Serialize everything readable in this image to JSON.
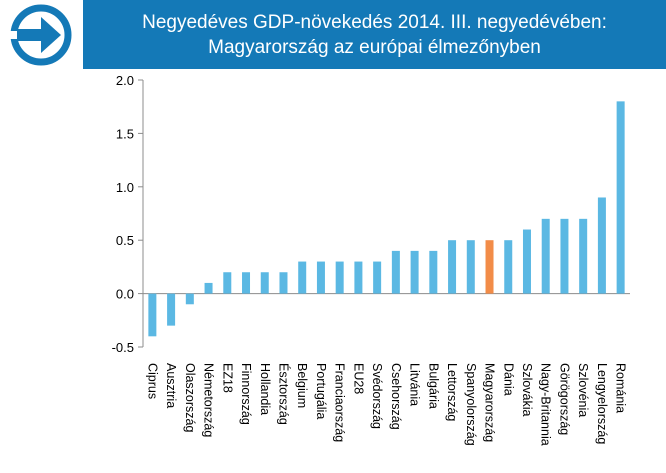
{
  "header": {
    "title_line1": "Negyedéves GDP-növekedés 2014. III. negyedévében:",
    "title_line2": "Magyarország az európai élmezőnyben",
    "background_color": "#1479b7",
    "logo_icon": "arrow-circle-logo-icon"
  },
  "chart_data": {
    "type": "bar",
    "title": "Negyedéves GDP-növekedés 2014. III. negyedévében: Magyarország az európai élmezőnyben",
    "xlabel": "",
    "ylabel": "",
    "ylim": [
      -0.5,
      2.0
    ],
    "yticks": [
      "2.0",
      "1.5",
      "1.0",
      "0.5",
      "0.0",
      "-0.5"
    ],
    "ytick_values": [
      2.0,
      1.5,
      1.0,
      0.5,
      0.0,
      -0.5
    ],
    "grid": false,
    "legend": "none",
    "categories": [
      "Ciprus",
      "Ausztria",
      "Olaszország",
      "Németország",
      "EZ18",
      "Finnország",
      "Hollandia",
      "Észtország",
      "Belgium",
      "Portugália",
      "Franciaország",
      "EU28",
      "Svédország",
      "Csehország",
      "Litvánia",
      "Bulgária",
      "Lettország",
      "Spanyolország",
      "Magyarország",
      "Dánia",
      "Szlovákia",
      "Nagy-Britannia",
      "Görögország",
      "Szlovénia",
      "Lengyelország",
      "Románia"
    ],
    "values": [
      -0.4,
      -0.3,
      -0.1,
      0.1,
      0.2,
      0.2,
      0.2,
      0.2,
      0.3,
      0.3,
      0.3,
      0.3,
      0.3,
      0.4,
      0.4,
      0.4,
      0.5,
      0.5,
      0.5,
      0.5,
      0.6,
      0.7,
      0.7,
      0.7,
      0.9,
      1.8
    ],
    "bar_color": "#5bb8e3",
    "highlight_color": "#f28c48",
    "highlight_category": "Magyarország"
  }
}
